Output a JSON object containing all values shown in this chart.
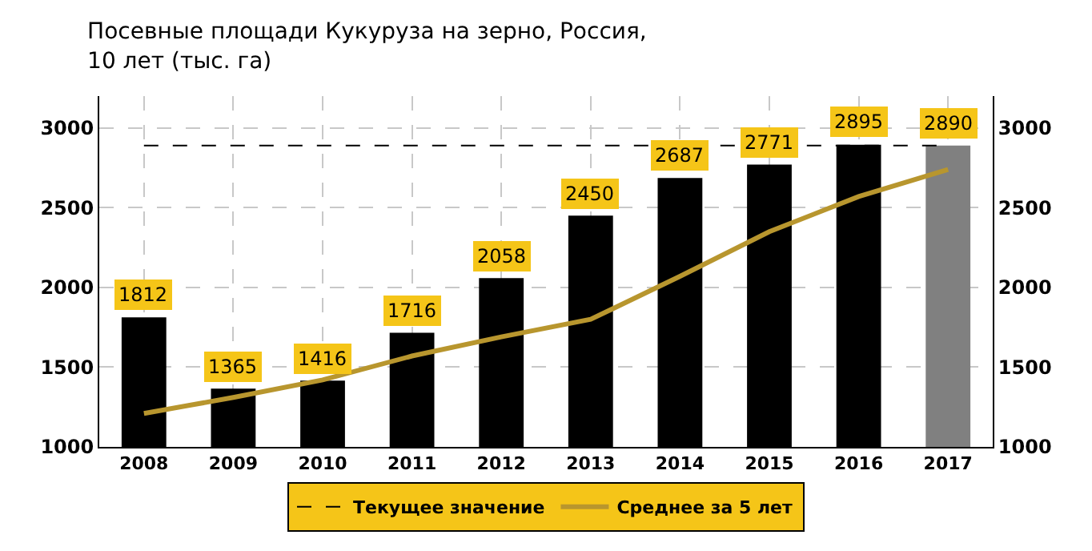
{
  "chart_data": {
    "type": "bar",
    "title": "Посевные площади Кукуруза на зерно, Россия,\n10 лет (тыс. га)",
    "categories": [
      "2008",
      "2009",
      "2010",
      "2011",
      "2012",
      "2013",
      "2014",
      "2015",
      "2016",
      "2017"
    ],
    "series": [
      {
        "colors": [
          "#000000",
          "#000000",
          "#000000",
          "#000000",
          "#000000",
          "#000000",
          "#000000",
          "#000000",
          "#000000",
          "#808080"
        ],
        "values": [
          1812,
          1365,
          1416,
          1716,
          2058,
          2450,
          2687,
          2771,
          2895,
          2890
        ],
        "value_labels": [
          "1812",
          "1365",
          "1416",
          "1716",
          "2058",
          "2450",
          "2687",
          "2771",
          "2895",
          "2890"
        ]
      },
      {
        "type": "line",
        "name": "Среднее за 5 лет",
        "color": "#b8962e",
        "marker": "none",
        "values": [
          1210,
          1310,
          1420,
          1570,
          1690,
          1800,
          2070,
          2350,
          2570,
          2740
        ]
      }
    ],
    "ref_lines": [
      {
        "axis": "y",
        "value": 2890,
        "label": "Текущее значение",
        "color": "#000000",
        "line_style": "dashed"
      }
    ],
    "ylim": [
      1000,
      3200
    ],
    "yticks": [
      1000,
      1500,
      2000,
      2500,
      3000
    ],
    "y2lim": [
      1000,
      3200
    ],
    "y2ticks": [
      1000,
      1500,
      2000,
      2500,
      3000
    ],
    "grid": true,
    "legend": "bottom"
  }
}
